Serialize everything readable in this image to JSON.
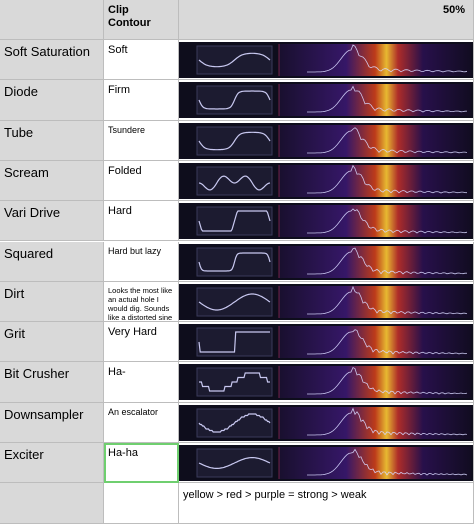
{
  "header": [
    "",
    "Clip Contour",
    "50%"
  ],
  "rows": [
    [
      "Soft Saturation",
      "Soft"
    ],
    [
      "Diode",
      "Firm"
    ],
    [
      "Tube",
      "Tsundere"
    ],
    [
      "Scream",
      "Folded"
    ],
    [
      "Vari Drive",
      "Hard"
    ],
    [
      "Squared",
      "Hard but lazy"
    ],
    [
      "Dirt",
      "Looks the most like an actual hole I would dig. Sounds like a distorted sine wave."
    ],
    [
      "Grit",
      "Very Hard"
    ],
    [
      "Bit Crusher",
      "Ha-"
    ],
    [
      "Downsampler",
      "An escalator"
    ],
    [
      "Exciter",
      "Ha-ha"
    ]
  ],
  "note": "yellow > red > purple = strong > weak"
}
